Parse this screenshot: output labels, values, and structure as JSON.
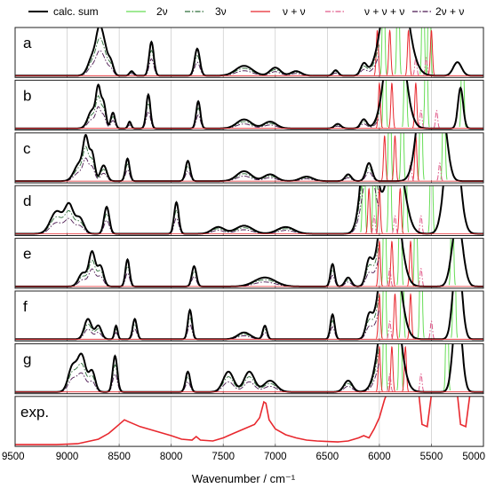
{
  "chart_data": {
    "type": "line",
    "xlabel": "Wavenumber / cm⁻¹",
    "x_ticks": [
      9500,
      9000,
      8500,
      8000,
      7500,
      7000,
      6500,
      6000,
      5500,
      5000
    ],
    "x_range": [
      9500,
      5000
    ],
    "x_reversed": true,
    "legend_placement": "top",
    "grid": {
      "vertical": true,
      "horizontal": false
    },
    "legend": [
      {
        "name": "calc. sum",
        "color": "#000000",
        "dash": "solid"
      },
      {
        "name": "2ν",
        "color": "#66dd55",
        "dash": "solid"
      },
      {
        "name": "3ν",
        "color": "#2f6f3a",
        "dash": "dashdot"
      },
      {
        "name": "ν + ν",
        "color": "#e8282e",
        "dash": "solid"
      },
      {
        "name": "ν + ν + ν",
        "color": "#e05a8a",
        "dash": "dashdot"
      },
      {
        "name": "2ν + ν",
        "color": "#4b1850",
        "dash": "dashdot"
      }
    ],
    "panels": [
      {
        "label": "a",
        "peaks": [
          {
            "x": 8750,
            "h": 0.45,
            "w": 45
          },
          {
            "x": 8690,
            "h": 0.8,
            "w": 30
          },
          {
            "x": 8640,
            "h": 0.55,
            "w": 30
          },
          {
            "x": 8580,
            "h": 0.3,
            "w": 25
          },
          {
            "x": 8380,
            "h": 0.1,
            "w": 20
          },
          {
            "x": 8190,
            "h": 0.75,
            "w": 22
          },
          {
            "x": 7750,
            "h": 0.6,
            "w": 25
          },
          {
            "x": 7300,
            "h": 0.22,
            "w": 80
          },
          {
            "x": 7000,
            "h": 0.18,
            "w": 50
          },
          {
            "x": 6800,
            "h": 0.1,
            "w": 50
          },
          {
            "x": 6420,
            "h": 0.12,
            "w": 25
          },
          {
            "x": 6150,
            "h": 0.25,
            "w": 30
          },
          {
            "x": 5850,
            "h": 3,
            "w": 100
          },
          {
            "x": 5250,
            "h": 0.3,
            "w": 40
          }
        ],
        "components": [
          {
            "series": "2ν",
            "x": [
              5960,
              5820,
              5580,
              5520
            ],
            "h": 3
          },
          {
            "series": "ν + ν",
            "x": [
              6020,
              5900,
              5720,
              5500
            ],
            "h": 1
          },
          {
            "series": "ν + ν + ν",
            "x": [
              5650,
              5550
            ],
            "h": 0.4
          }
        ]
      },
      {
        "label": "b",
        "peaks": [
          {
            "x": 8760,
            "h": 0.4,
            "w": 40
          },
          {
            "x": 8700,
            "h": 0.8,
            "w": 22
          },
          {
            "x": 8650,
            "h": 0.55,
            "w": 22
          },
          {
            "x": 8560,
            "h": 0.35,
            "w": 20
          },
          {
            "x": 8400,
            "h": 0.15,
            "w": 15
          },
          {
            "x": 8220,
            "h": 0.75,
            "w": 20
          },
          {
            "x": 7740,
            "h": 0.6,
            "w": 20
          },
          {
            "x": 7300,
            "h": 0.2,
            "w": 70
          },
          {
            "x": 7050,
            "h": 0.15,
            "w": 60
          },
          {
            "x": 6400,
            "h": 0.1,
            "w": 30
          },
          {
            "x": 6150,
            "h": 0.2,
            "w": 30
          },
          {
            "x": 5850,
            "h": 3,
            "w": 80
          },
          {
            "x": 5220,
            "h": 0.9,
            "w": 25
          }
        ],
        "components": [
          {
            "series": "2ν",
            "x": [
              5950,
              5750,
              5550,
              5200
            ],
            "h": 3
          },
          {
            "series": "ν + ν",
            "x": [
              6000,
              5880,
              5650
            ],
            "h": 1
          },
          {
            "series": "ν + ν + ν",
            "x": [
              5600,
              5450
            ],
            "h": 0.4
          }
        ]
      },
      {
        "label": "c",
        "peaks": [
          {
            "x": 8880,
            "h": 0.4,
            "w": 50
          },
          {
            "x": 8820,
            "h": 0.8,
            "w": 25
          },
          {
            "x": 8760,
            "h": 0.6,
            "w": 25
          },
          {
            "x": 8650,
            "h": 0.35,
            "w": 30
          },
          {
            "x": 8420,
            "h": 0.5,
            "w": 20
          },
          {
            "x": 7840,
            "h": 0.45,
            "w": 22
          },
          {
            "x": 7300,
            "h": 0.22,
            "w": 70
          },
          {
            "x": 7050,
            "h": 0.15,
            "w": 60
          },
          {
            "x": 6700,
            "h": 0.1,
            "w": 60
          },
          {
            "x": 6300,
            "h": 0.15,
            "w": 30
          },
          {
            "x": 6100,
            "h": 0.4,
            "w": 30
          },
          {
            "x": 5550,
            "h": 3,
            "w": 70
          },
          {
            "x": 5400,
            "h": 1.5,
            "w": 50
          }
        ],
        "components": [
          {
            "series": "2ν",
            "x": [
              5900,
              5780,
              5600,
              5380
            ],
            "h": 3
          },
          {
            "series": "ν + ν",
            "x": [
              5950,
              5850,
              5650
            ],
            "h": 1
          },
          {
            "series": "ν + ν + ν",
            "x": [
              5700,
              5420
            ],
            "h": 0.4
          }
        ]
      },
      {
        "label": "d",
        "peaks": [
          {
            "x": 9100,
            "h": 0.5,
            "w": 60
          },
          {
            "x": 8980,
            "h": 0.6,
            "w": 40
          },
          {
            "x": 8880,
            "h": 0.35,
            "w": 40
          },
          {
            "x": 8620,
            "h": 0.6,
            "w": 25
          },
          {
            "x": 7950,
            "h": 0.7,
            "w": 22
          },
          {
            "x": 7550,
            "h": 0.15,
            "w": 60
          },
          {
            "x": 7300,
            "h": 0.18,
            "w": 80
          },
          {
            "x": 6900,
            "h": 0.15,
            "w": 80
          },
          {
            "x": 6100,
            "h": 3,
            "w": 60
          },
          {
            "x": 5850,
            "h": 2,
            "w": 80
          },
          {
            "x": 5300,
            "h": 3,
            "w": 60
          }
        ],
        "components": [
          {
            "series": "2ν",
            "x": [
              6150,
              6050,
              5900,
              5750,
              5500
            ],
            "h": 3
          },
          {
            "series": "ν + ν",
            "x": [
              6100,
              6000,
              5800
            ],
            "h": 1
          },
          {
            "series": "ν + ν + ν",
            "x": [
              6050,
              5850,
              5600
            ],
            "h": 0.4
          }
        ]
      },
      {
        "label": "e",
        "peaks": [
          {
            "x": 8850,
            "h": 0.3,
            "w": 40
          },
          {
            "x": 8760,
            "h": 0.75,
            "w": 30
          },
          {
            "x": 8680,
            "h": 0.45,
            "w": 30
          },
          {
            "x": 8420,
            "h": 0.6,
            "w": 20
          },
          {
            "x": 7780,
            "h": 0.45,
            "w": 22
          },
          {
            "x": 7100,
            "h": 0.2,
            "w": 100
          },
          {
            "x": 6450,
            "h": 0.5,
            "w": 20
          },
          {
            "x": 6300,
            "h": 0.2,
            "w": 30
          },
          {
            "x": 6100,
            "h": 0.5,
            "w": 30
          },
          {
            "x": 5900,
            "h": 3,
            "w": 80
          },
          {
            "x": 5250,
            "h": 1.5,
            "w": 50
          }
        ],
        "components": [
          {
            "series": "2ν",
            "x": [
              5950,
              5800,
              5650,
              5300
            ],
            "h": 3
          },
          {
            "series": "ν + ν",
            "x": [
              6000,
              5880,
              5700
            ],
            "h": 1
          },
          {
            "series": "ν + ν + ν",
            "x": [
              5900,
              5600
            ],
            "h": 0.4
          }
        ]
      },
      {
        "label": "f",
        "peaks": [
          {
            "x": 8800,
            "h": 0.45,
            "w": 35
          },
          {
            "x": 8700,
            "h": 0.3,
            "w": 30
          },
          {
            "x": 8530,
            "h": 0.3,
            "w": 15
          },
          {
            "x": 8350,
            "h": 0.45,
            "w": 20
          },
          {
            "x": 7820,
            "h": 0.65,
            "w": 20
          },
          {
            "x": 7300,
            "h": 0.15,
            "w": 60
          },
          {
            "x": 7100,
            "h": 0.3,
            "w": 20
          },
          {
            "x": 6450,
            "h": 0.55,
            "w": 20
          },
          {
            "x": 6100,
            "h": 0.45,
            "w": 30
          },
          {
            "x": 5900,
            "h": 3,
            "w": 80
          },
          {
            "x": 5250,
            "h": 2,
            "w": 40
          }
        ],
        "components": [
          {
            "series": "2ν",
            "x": [
              5950,
              5780,
              5600,
              5280
            ],
            "h": 3
          },
          {
            "series": "ν + ν",
            "x": [
              6000,
              5850,
              5700
            ],
            "h": 1
          },
          {
            "series": "ν + ν + ν",
            "x": [
              5900,
              5500
            ],
            "h": 0.4
          }
        ]
      },
      {
        "label": "g",
        "peaks": [
          {
            "x": 8950,
            "h": 0.55,
            "w": 40
          },
          {
            "x": 8860,
            "h": 0.8,
            "w": 40
          },
          {
            "x": 8760,
            "h": 0.45,
            "w": 30
          },
          {
            "x": 8540,
            "h": 0.8,
            "w": 22
          },
          {
            "x": 7840,
            "h": 0.45,
            "w": 22
          },
          {
            "x": 7450,
            "h": 0.45,
            "w": 50
          },
          {
            "x": 7250,
            "h": 0.45,
            "w": 50
          },
          {
            "x": 7050,
            "h": 0.25,
            "w": 60
          },
          {
            "x": 6300,
            "h": 0.25,
            "w": 40
          },
          {
            "x": 5900,
            "h": 3,
            "w": 80
          },
          {
            "x": 5250,
            "h": 2,
            "w": 40
          }
        ],
        "components": [
          {
            "series": "2ν",
            "x": [
              5950,
              5800,
              5350
            ],
            "h": 3
          },
          {
            "series": "ν + ν",
            "x": [
              6000,
              5880,
              5750
            ],
            "h": 1
          },
          {
            "series": "ν + ν + ν",
            "x": [
              5900,
              5600
            ],
            "h": 0.4
          }
        ]
      },
      {
        "label": "exp.",
        "experimental": true,
        "color": "#e8282e",
        "x": [
          9500,
          9100,
          8900,
          8700,
          8600,
          8500,
          8450,
          8420,
          8300,
          8150,
          8000,
          7900,
          7800,
          7760,
          7720,
          7600,
          7500,
          7400,
          7300,
          7200,
          7150,
          7110,
          7090,
          7060,
          7000,
          6900,
          6800,
          6700,
          6600,
          6500,
          6400,
          6300,
          6200,
          6150,
          6100,
          6050,
          6000,
          5950,
          5900
        ],
        "y": [
          0.0,
          0.0,
          0.02,
          0.12,
          0.25,
          0.45,
          0.55,
          0.52,
          0.4,
          0.3,
          0.2,
          0.12,
          0.1,
          0.18,
          0.1,
          0.08,
          0.15,
          0.25,
          0.35,
          0.45,
          0.6,
          0.95,
          0.92,
          0.55,
          0.35,
          0.22,
          0.15,
          0.1,
          0.08,
          0.07,
          0.06,
          0.08,
          0.15,
          0.2,
          0.15,
          0.35,
          0.6,
          1.0,
          1.3
        ],
        "segments_beyond_top": [
          [
            5900,
            5620
          ],
          [
            5400,
            5250
          ]
        ]
      }
    ]
  }
}
